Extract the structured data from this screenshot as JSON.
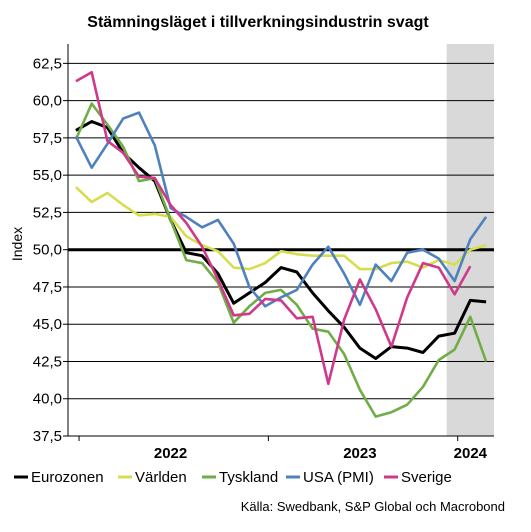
{
  "chart_data": {
    "type": "line",
    "title": "Stämningsläget i tillverkningsindustrin svagt",
    "ylabel": "Index",
    "xlabel": "",
    "ylim": [
      37.5,
      63.8
    ],
    "yticks": [
      "62,5",
      "60,0",
      "57,5",
      "55,0",
      "52,5",
      "50,0",
      "47,5",
      "45,0",
      "42,5",
      "40,0",
      "37,5"
    ],
    "ytick_values": [
      62.5,
      60.0,
      57.5,
      55.0,
      52.5,
      50.0,
      47.5,
      45.0,
      42.5,
      40.0,
      37.5
    ],
    "year_labels": [
      {
        "label": "2022",
        "month_index": 6
      },
      {
        "label": "2023",
        "month_index": 18
      },
      {
        "label": "2024",
        "month_index": 25
      }
    ],
    "period_months": 27,
    "shaded_from_month": 24,
    "reference_line": 50.0,
    "grid": true,
    "legend_position": "bottom",
    "series": [
      {
        "name": "Eurozonen",
        "color": "#000000",
        "values": [
          58.0,
          58.6,
          58.2,
          56.5,
          55.5,
          54.6,
          52.0,
          49.8,
          49.6,
          48.4,
          46.4,
          47.1,
          47.8,
          48.8,
          48.5,
          47.1,
          45.9,
          44.8,
          43.4,
          42.7,
          43.5,
          43.4,
          43.1,
          44.2,
          44.4,
          46.6,
          46.5
        ]
      },
      {
        "name": "Världen",
        "color": "#d7de4e",
        "values": [
          54.2,
          53.2,
          53.8,
          53.0,
          52.3,
          52.4,
          52.2,
          50.9,
          50.3,
          49.9,
          48.8,
          48.7,
          49.1,
          49.9,
          49.7,
          49.6,
          49.6,
          49.6,
          48.7,
          48.7,
          49.1,
          49.2,
          48.8,
          49.3,
          49.0,
          50.0,
          50.3
        ]
      },
      {
        "name": "Tyskland",
        "color": "#70ad47",
        "values": [
          57.4,
          59.8,
          58.4,
          56.9,
          54.6,
          54.8,
          52.0,
          49.3,
          49.1,
          47.8,
          45.1,
          46.2,
          47.1,
          47.3,
          46.3,
          44.7,
          44.5,
          43.0,
          40.6,
          38.8,
          39.1,
          39.6,
          40.8,
          42.6,
          43.3,
          45.5,
          42.5
        ]
      },
      {
        "name": "USA (PMI)",
        "color": "#4f81bd",
        "values": [
          57.6,
          55.5,
          57.1,
          58.8,
          59.2,
          57.0,
          52.8,
          52.2,
          51.5,
          52.0,
          50.4,
          47.5,
          46.2,
          46.8,
          47.3,
          49.0,
          50.2,
          48.4,
          46.3,
          49.0,
          47.9,
          49.8,
          50.0,
          49.4,
          47.9,
          50.7,
          52.2
        ]
      },
      {
        "name": "Sverige",
        "color": "#d0398a",
        "values": [
          61.3,
          61.9,
          57.3,
          56.5,
          54.9,
          54.8,
          53.0,
          51.8,
          50.2,
          48.0,
          45.6,
          45.7,
          46.7,
          46.6,
          45.4,
          45.5,
          41.0,
          45.3,
          48.0,
          46.0,
          43.5,
          46.8,
          49.1,
          48.8,
          47.0,
          48.9
        ]
      }
    ]
  },
  "legend": [
    {
      "label": "Eurozonen",
      "color": "#000000"
    },
    {
      "label": "Världen",
      "color": "#d7de4e"
    },
    {
      "label": "Tyskland",
      "color": "#70ad47"
    },
    {
      "label": "USA (PMI)",
      "color": "#4f81bd"
    },
    {
      "label": "Sverige",
      "color": "#d0398a"
    }
  ],
  "source": "Källa: Swedbank, S&P Global och Macrobond"
}
